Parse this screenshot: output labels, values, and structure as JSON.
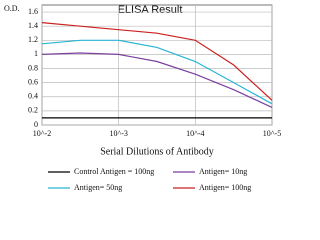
{
  "chart_data": {
    "type": "line",
    "title": "ELISA Result",
    "y_label": "O.D.",
    "x_label": "Serial Dilutions of Antibody",
    "x": [
      -2,
      -2.5,
      -3,
      -3.5,
      -4,
      -4.5,
      -5
    ],
    "xlim": [
      -2,
      -5
    ],
    "xticks": [
      {
        "value": -2,
        "label": "10^-2"
      },
      {
        "value": -3,
        "label": "10^-3"
      },
      {
        "value": -4,
        "label": "10^-4"
      },
      {
        "value": -5,
        "label": "10^-5"
      }
    ],
    "ylim": [
      0,
      1.7
    ],
    "yticks": [
      0,
      0.2,
      0.4,
      0.6,
      0.8,
      1,
      1.2,
      1.4,
      1.6
    ],
    "grid": true,
    "series": [
      {
        "name": "Control Antigen = 100ng",
        "color": "#000000",
        "values": [
          0.1,
          0.1,
          0.1,
          0.1,
          0.1,
          0.1,
          0.1
        ]
      },
      {
        "name": "Antigen= 10ng",
        "color": "#7b3f9e",
        "values": [
          1.0,
          1.02,
          1.0,
          0.9,
          0.72,
          0.5,
          0.25
        ]
      },
      {
        "name": "Antigen= 50ng",
        "color": "#27b5d6",
        "values": [
          1.15,
          1.2,
          1.2,
          1.1,
          0.9,
          0.6,
          0.3
        ]
      },
      {
        "name": "Antigen= 100ng",
        "color": "#cc2020",
        "values": [
          1.45,
          1.4,
          1.35,
          1.3,
          1.2,
          0.85,
          0.35
        ]
      }
    ]
  }
}
